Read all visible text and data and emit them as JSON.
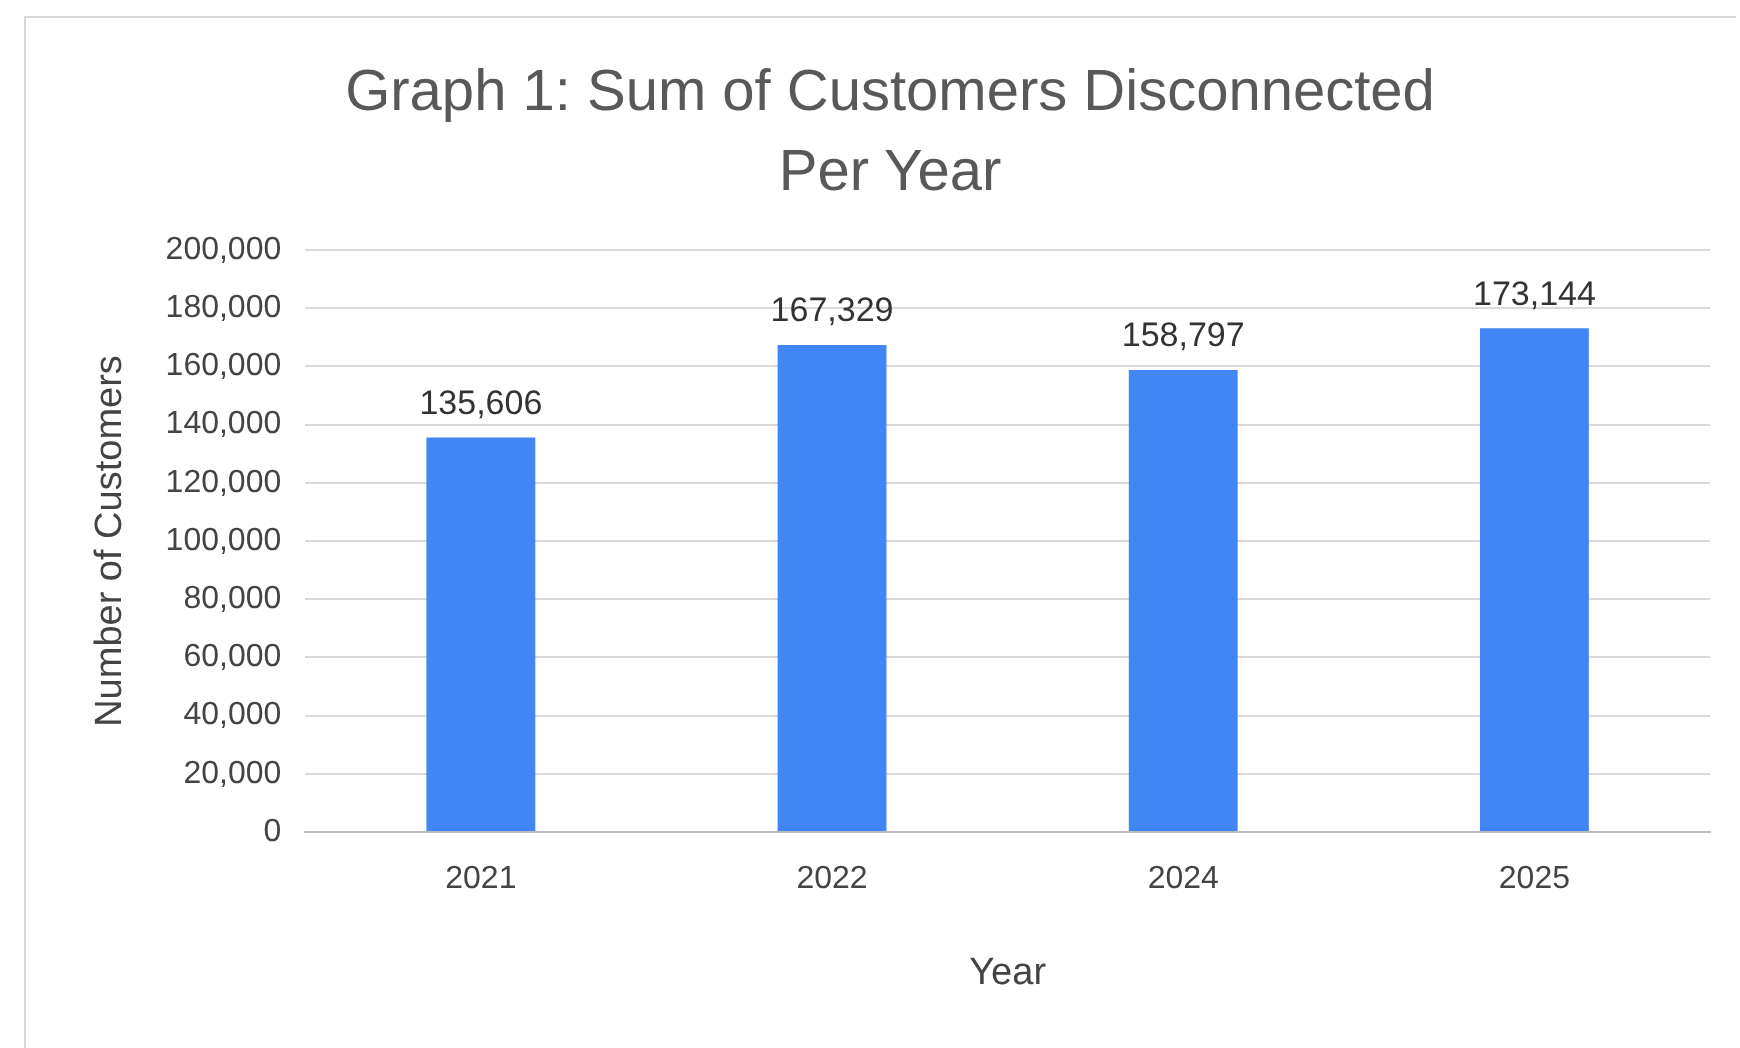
{
  "chart_data": {
    "type": "bar",
    "title": "Graph 1: Sum of Customers Disconnected Per Year",
    "xlabel": "Year",
    "ylabel": "Number of Customers",
    "categories": [
      "2021",
      "2022",
      "2024",
      "2025"
    ],
    "values": [
      135606,
      167329,
      158797,
      173144
    ],
    "color": "#4285f4",
    "value_labels": [
      "135,606",
      "167,329",
      "158,797",
      "173,144"
    ],
    "ylim": [
      0,
      200000
    ],
    "yticks": [
      0,
      {
        "value": 20000,
        "label": "20,000"
      },
      {
        "value": 40000,
        "label": "40,000"
      },
      {
        "value": 60000,
        "label": "60,000"
      },
      {
        "value": 80000,
        "label": "80,000"
      },
      {
        "value": 100000,
        "label": "100,000"
      },
      {
        "value": 120000,
        "label": "120,000"
      },
      {
        "value": 140000,
        "label": "140,000"
      },
      {
        "value": 160000,
        "label": "160,000"
      },
      {
        "value": 180000,
        "label": "180,000"
      },
      {
        "value": 200000,
        "label": "200,000"
      }
    ],
    "grid": "y",
    "legend": false
  }
}
